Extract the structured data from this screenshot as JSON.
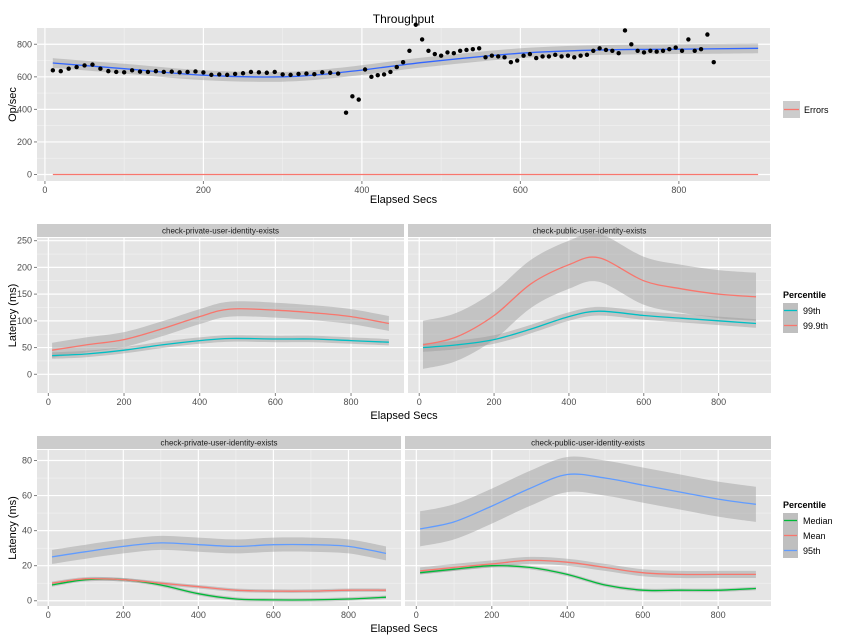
{
  "chart_data": [
    {
      "type": "scatter",
      "title": "Throughput",
      "xlabel": "Elapsed Secs",
      "ylabel": "Op/sec",
      "xlim": [
        -10,
        915
      ],
      "ylim": [
        -40,
        900
      ],
      "xticks": [
        0,
        200,
        400,
        600,
        800
      ],
      "yticks": [
        0,
        200,
        400,
        600,
        800
      ],
      "grid": true,
      "legend_position": "right",
      "legend": [
        {
          "name": "Errors",
          "color": "#F8766D"
        }
      ],
      "points": [
        [
          10,
          640
        ],
        [
          20,
          635
        ],
        [
          30,
          650
        ],
        [
          40,
          660
        ],
        [
          50,
          670
        ],
        [
          60,
          675
        ],
        [
          70,
          650
        ],
        [
          80,
          635
        ],
        [
          90,
          630
        ],
        [
          100,
          628
        ],
        [
          110,
          640
        ],
        [
          120,
          632
        ],
        [
          130,
          630
        ],
        [
          140,
          635
        ],
        [
          150,
          630
        ],
        [
          160,
          632
        ],
        [
          170,
          628
        ],
        [
          180,
          630
        ],
        [
          190,
          633
        ],
        [
          200,
          627
        ],
        [
          210,
          612
        ],
        [
          220,
          615
        ],
        [
          230,
          612
        ],
        [
          240,
          618
        ],
        [
          250,
          622
        ],
        [
          260,
          630
        ],
        [
          270,
          628
        ],
        [
          280,
          625
        ],
        [
          290,
          630
        ],
        [
          300,
          615
        ],
        [
          310,
          612
        ],
        [
          320,
          618
        ],
        [
          330,
          620
        ],
        [
          340,
          616
        ],
        [
          350,
          628
        ],
        [
          360,
          625
        ],
        [
          370,
          620
        ],
        [
          380,
          380
        ],
        [
          388,
          480
        ],
        [
          396,
          460
        ],
        [
          404,
          645
        ],
        [
          412,
          600
        ],
        [
          420,
          610
        ],
        [
          428,
          615
        ],
        [
          436,
          630
        ],
        [
          444,
          660
        ],
        [
          452,
          690
        ],
        [
          460,
          760
        ],
        [
          468,
          920
        ],
        [
          476,
          830
        ],
        [
          484,
          760
        ],
        [
          492,
          740
        ],
        [
          500,
          730
        ],
        [
          508,
          750
        ],
        [
          516,
          745
        ],
        [
          524,
          760
        ],
        [
          532,
          765
        ],
        [
          540,
          770
        ],
        [
          548,
          775
        ],
        [
          556,
          720
        ],
        [
          564,
          730
        ],
        [
          572,
          725
        ],
        [
          580,
          720
        ],
        [
          588,
          690
        ],
        [
          596,
          700
        ],
        [
          604,
          730
        ],
        [
          612,
          740
        ],
        [
          620,
          715
        ],
        [
          628,
          725
        ],
        [
          636,
          725
        ],
        [
          644,
          735
        ],
        [
          652,
          725
        ],
        [
          660,
          730
        ],
        [
          668,
          720
        ],
        [
          676,
          730
        ],
        [
          684,
          735
        ],
        [
          692,
          760
        ],
        [
          700,
          775
        ],
        [
          708,
          765
        ],
        [
          716,
          760
        ],
        [
          724,
          745
        ],
        [
          732,
          885
        ],
        [
          740,
          800
        ],
        [
          748,
          760
        ],
        [
          756,
          750
        ],
        [
          764,
          760
        ],
        [
          772,
          755
        ],
        [
          780,
          760
        ],
        [
          788,
          770
        ],
        [
          796,
          780
        ],
        [
          804,
          760
        ],
        [
          812,
          830
        ],
        [
          820,
          760
        ],
        [
          828,
          770
        ],
        [
          836,
          860
        ],
        [
          844,
          690
        ]
      ],
      "smooth": {
        "x": [
          10,
          100,
          200,
          300,
          380,
          480,
          600,
          700,
          800,
          900
        ],
        "y": [
          685,
          650,
          610,
          600,
          630,
          690,
          745,
          765,
          770,
          775
        ]
      },
      "smooth_band": 30,
      "errors": {
        "x": [
          10,
          900
        ],
        "y": [
          0,
          0
        ]
      }
    },
    {
      "type": "line",
      "panels": [
        "check-private-user-identity-exists",
        "check-public-user-identity-exists"
      ],
      "xlabel": "Elapsed Secs",
      "ylabel": "Latency (ms)",
      "xlim": [
        -30,
        940
      ],
      "ylim": [
        -35,
        255
      ],
      "xticks": [
        0,
        200,
        400,
        600,
        800
      ],
      "yticks": [
        0,
        50,
        100,
        150,
        200,
        250
      ],
      "legend_title": "Percentile",
      "series": [
        {
          "name": "99th",
          "color": "#00BFC4",
          "panel_values": [
            {
              "x": [
                10,
                100,
                200,
                300,
                400,
                480,
                600,
                700,
                800,
                900
              ],
              "y": [
                35,
                38,
                45,
                55,
                63,
                67,
                66,
                66,
                63,
                60
              ],
              "band": 6
            },
            {
              "x": [
                10,
                100,
                200,
                300,
                400,
                480,
                600,
                700,
                800,
                900
              ],
              "y": [
                50,
                55,
                65,
                85,
                108,
                118,
                110,
                105,
                100,
                95
              ],
              "band": 8
            }
          ]
        },
        {
          "name": "99.9th",
          "color": "#F8766D",
          "panel_values": [
            {
              "x": [
                10,
                100,
                200,
                300,
                400,
                480,
                600,
                700,
                800,
                900
              ],
              "y": [
                45,
                55,
                65,
                85,
                108,
                122,
                120,
                115,
                108,
                95
              ],
              "band": 14
            },
            {
              "x": [
                10,
                100,
                200,
                300,
                400,
                480,
                600,
                700,
                800,
                900
              ],
              "y": [
                55,
                70,
                110,
                170,
                205,
                218,
                175,
                160,
                150,
                145
              ],
              "band": 45
            }
          ]
        }
      ]
    },
    {
      "type": "line",
      "panels": [
        "check-private-user-identity-exists",
        "check-public-user-identity-exists"
      ],
      "xlabel": "Elapsed Secs",
      "ylabel": "Latency (ms)",
      "xlim": [
        -30,
        940
      ],
      "ylim": [
        -3,
        86
      ],
      "xticks": [
        0,
        200,
        400,
        600,
        800
      ],
      "yticks": [
        0,
        20,
        40,
        60,
        80
      ],
      "legend_title": "Percentile",
      "series": [
        {
          "name": "Median",
          "color": "#00BA38",
          "panel_values": [
            {
              "x": [
                10,
                100,
                200,
                300,
                400,
                500,
                600,
                700,
                800,
                900
              ],
              "y": [
                9,
                12,
                12,
                9,
                4,
                1,
                0.5,
                0.5,
                1,
                2
              ],
              "band": 1
            },
            {
              "x": [
                10,
                100,
                200,
                300,
                400,
                500,
                600,
                700,
                800,
                900
              ],
              "y": [
                16,
                18,
                20,
                19,
                15,
                9,
                6,
                6,
                6,
                7
              ],
              "band": 1
            }
          ]
        },
        {
          "name": "Mean",
          "color": "#F8766D",
          "panel_values": [
            {
              "x": [
                10,
                100,
                200,
                300,
                400,
                500,
                600,
                700,
                800,
                900
              ],
              "y": [
                10,
                12.5,
                12,
                10,
                8,
                6,
                5.5,
                5.5,
                6,
                6
              ],
              "band": 1
            },
            {
              "x": [
                10,
                100,
                200,
                300,
                400,
                500,
                600,
                700,
                800,
                900
              ],
              "y": [
                17,
                19,
                21,
                23,
                22,
                19,
                16,
                15,
                15,
                15
              ],
              "band": 2
            }
          ]
        },
        {
          "name": "95th",
          "color": "#619CFF",
          "panel_values": [
            {
              "x": [
                10,
                100,
                200,
                300,
                400,
                500,
                600,
                700,
                800,
                900
              ],
              "y": [
                25,
                28,
                31,
                33,
                32,
                31,
                32,
                32,
                31,
                27
              ],
              "band": 4
            },
            {
              "x": [
                10,
                100,
                200,
                300,
                400,
                500,
                600,
                700,
                800,
                900
              ],
              "y": [
                41,
                45,
                54,
                64,
                72,
                70,
                66,
                62,
                58,
                55
              ],
              "band": 10
            }
          ]
        }
      ]
    }
  ]
}
